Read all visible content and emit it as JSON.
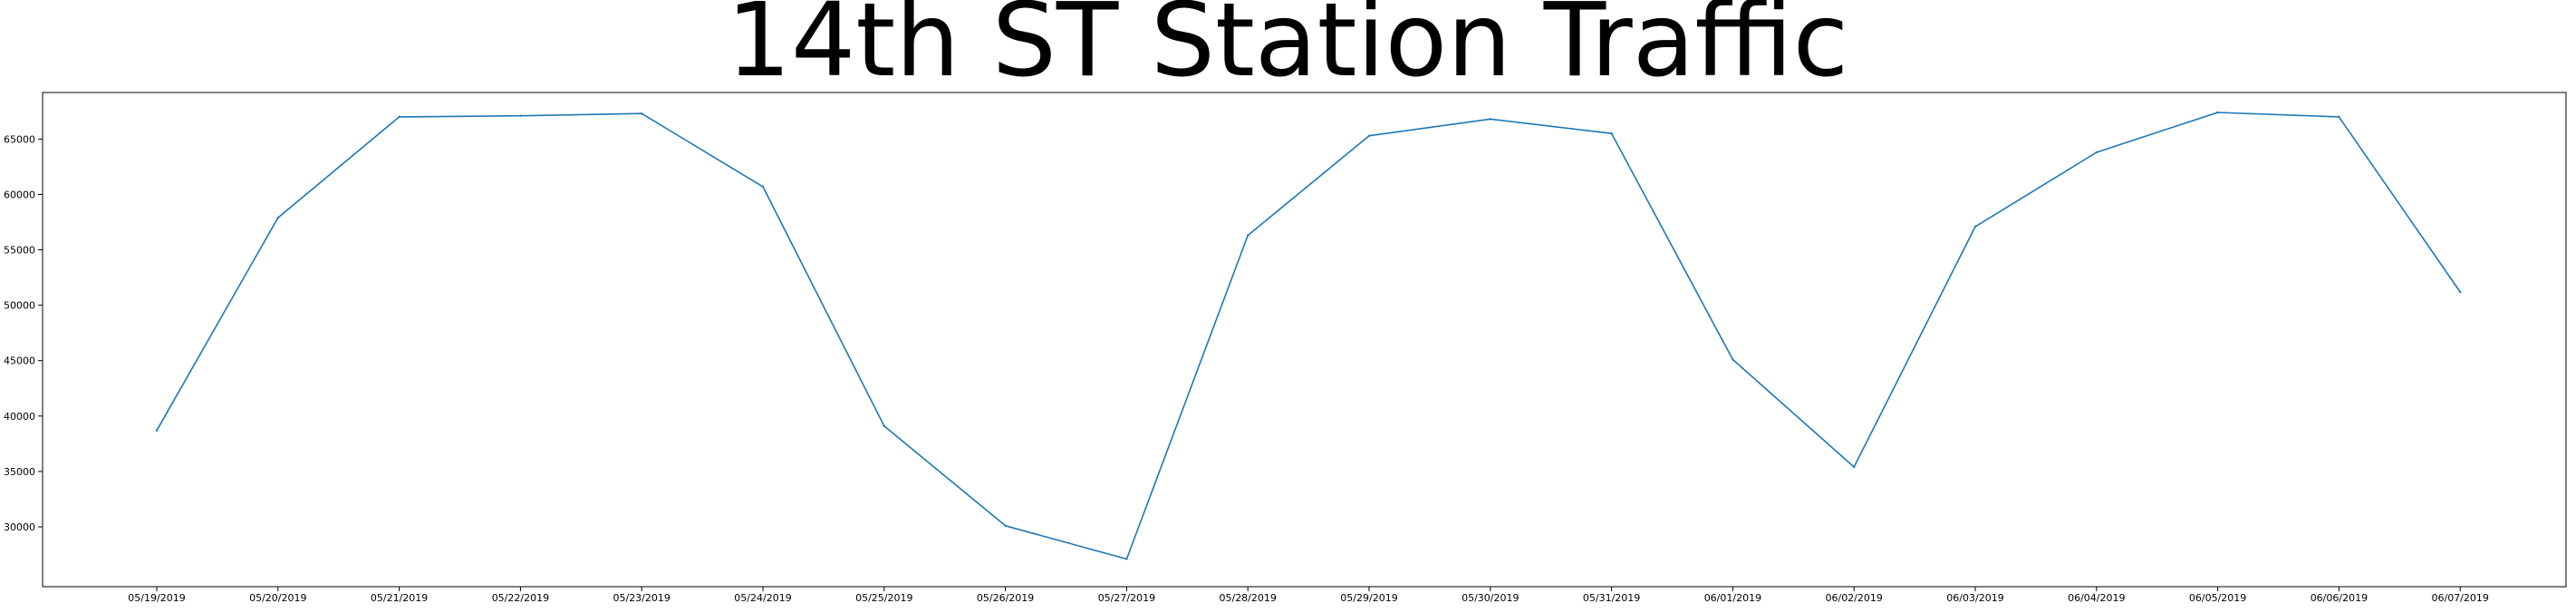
{
  "chart_data": {
    "type": "line",
    "title": "14th ST Station Traffic",
    "xlabel": "",
    "ylabel": "",
    "grid": false,
    "categories": [
      "05/19/2019",
      "05/20/2019",
      "05/21/2019",
      "05/22/2019",
      "05/23/2019",
      "05/24/2019",
      "05/25/2019",
      "05/26/2019",
      "05/27/2019",
      "05/28/2019",
      "05/29/2019",
      "05/30/2019",
      "05/31/2019",
      "06/01/2019",
      "06/02/2019",
      "06/03/2019",
      "06/04/2019",
      "06/05/2019",
      "06/06/2019",
      "06/07/2019"
    ],
    "values": [
      38700,
      57900,
      67000,
      67100,
      67300,
      60700,
      39100,
      30100,
      27100,
      56300,
      65300,
      66800,
      65500,
      45100,
      35400,
      57100,
      63800,
      67400,
      67000,
      51200
    ],
    "ylim": [
      24600,
      69200
    ],
    "yticks": [
      30000,
      35000,
      40000,
      45000,
      50000,
      55000,
      60000,
      65000
    ],
    "colors": {
      "line": "#1f77b4",
      "axes": "#000000"
    }
  }
}
